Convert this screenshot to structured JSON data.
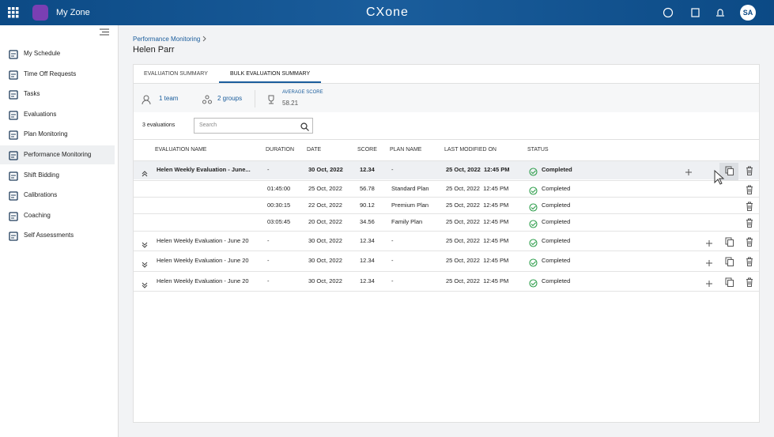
{
  "topbar": {
    "app_name": "My Zone",
    "logo": "CXone",
    "user_initials": "SA"
  },
  "sidebar": {
    "items": [
      "My Schedule",
      "Time Off Requests",
      "Tasks",
      "Evaluations",
      "Plan Monitoring",
      "Performance Monitoring",
      "Shift Bidding",
      "Calibrations",
      "Coaching",
      "Self Assessments"
    ],
    "active": 5
  },
  "breadcrumb": "Performance Monitoring",
  "page_title": "Helen Parr",
  "tabs": [
    "EVALUATION SUMMARY",
    "BULK EVALUATION SUMMARY"
  ],
  "active_tab": 1,
  "summary": {
    "team": "1 team",
    "groups": "2 groups",
    "average_score_label": "AVERAGE SCORE",
    "average_score": "58.21"
  },
  "toolbar": {
    "count": "3 evaluations",
    "search_placeholder": "Search"
  },
  "table": {
    "columns": [
      "EVALUATION NAME",
      "DURATION",
      "DATE",
      "SCORE",
      "PLAN NAME",
      "LAST MODIFIED ON",
      "STATUS"
    ],
    "rows": [
      {
        "name": "Helen Weekly Evaluation - June...",
        "duration": "-",
        "date": "30 Oct, 2022",
        "score": "12.34",
        "plan": "-",
        "modified": "25 Oct, 2022  12:45 PM",
        "status": "Completed"
      },
      {
        "duration": "01:45:00",
        "date": "25 Oct, 2022",
        "score": "56.78",
        "plan": "Standard Plan",
        "modified": "25 Oct, 2022  12:45 PM",
        "status": "Completed"
      },
      {
        "duration": "00:30:15",
        "date": "22 Oct, 2022",
        "score": "90.12",
        "plan": "Premium Plan",
        "modified": "25 Oct, 2022  12:45 PM",
        "status": "Completed"
      },
      {
        "duration": "03:05:45",
        "date": "20 Oct, 2022",
        "score": "34.56",
        "plan": "Family Plan",
        "modified": "25 Oct, 2022  12:45 PM",
        "status": "Completed"
      },
      {
        "name": "Helen Weekly Evaluation - June 20",
        "duration": "-",
        "date": "30 Oct, 2022",
        "score": "12.34",
        "plan": "-",
        "modified": "25 Oct, 2022  12:45 PM",
        "status": "Completed"
      },
      {
        "name": "Helen Weekly Evaluation - June 20",
        "duration": "-",
        "date": "30 Oct, 2022",
        "score": "12.34",
        "plan": "-",
        "modified": "25 Oct, 2022  12:45 PM",
        "status": "Completed"
      },
      {
        "name": "Helen Weekly Evaluation - June 20",
        "duration": "-",
        "date": "30 Oct, 2022",
        "score": "12.34",
        "plan": "-",
        "modified": "25 Oct, 2022  12:45 PM",
        "status": "Completed"
      }
    ]
  }
}
